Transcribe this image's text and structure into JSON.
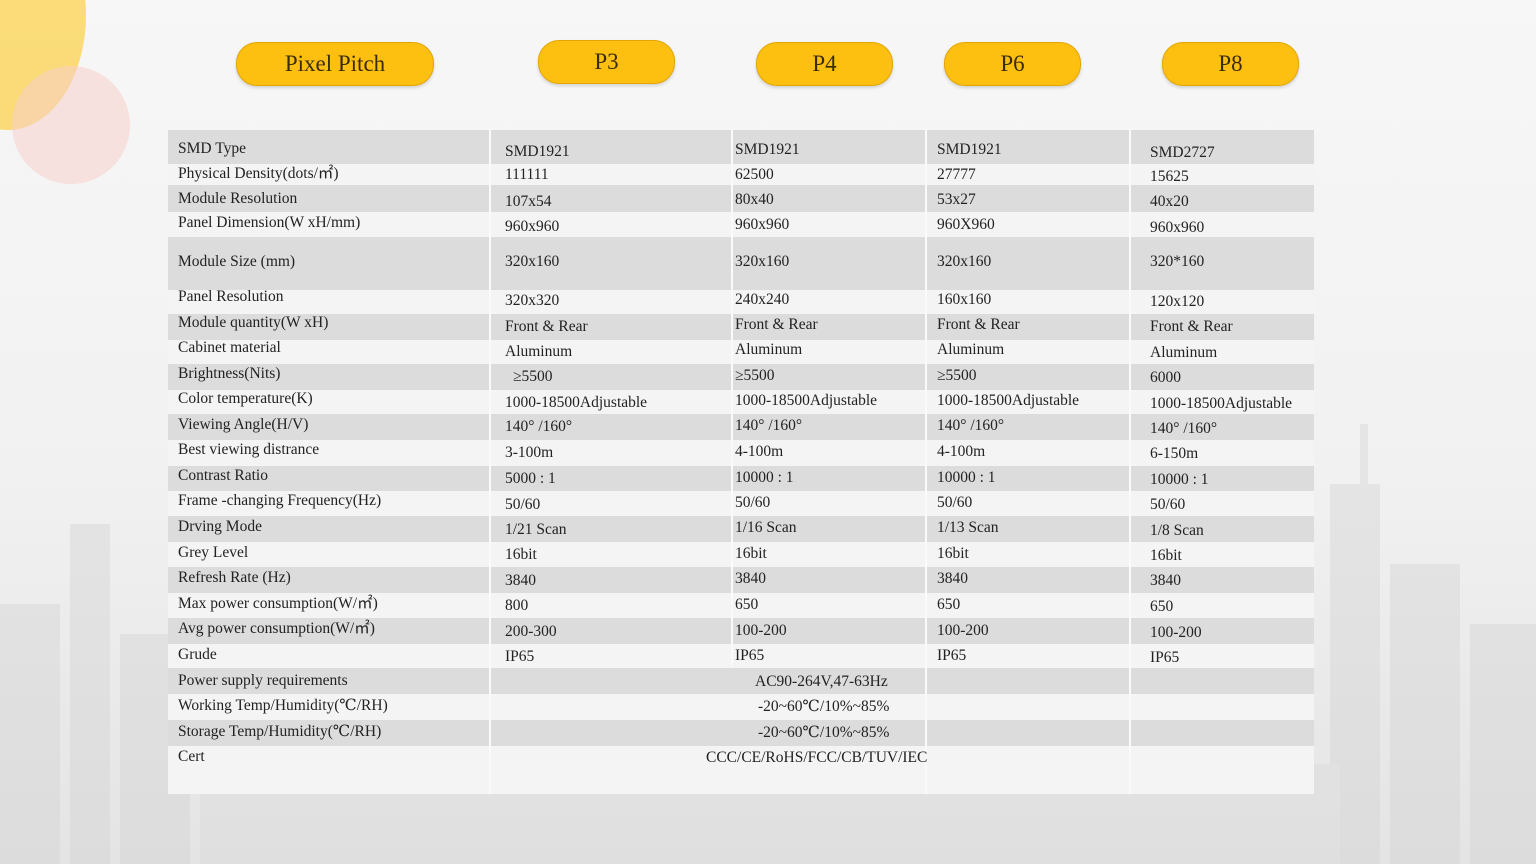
{
  "header": {
    "pixel_pitch_label": "Pixel Pitch",
    "models": [
      "P3",
      "P4",
      "P6",
      "P8"
    ]
  },
  "table": {
    "rows": [
      {
        "label": "SMD Type",
        "values": [
          "SMD1921",
          "SMD1921",
          "SMD1921",
          "SMD2727"
        ]
      },
      {
        "label": "Physical Density(dots/㎡)",
        "values": [
          "111111",
          "62500",
          "27777",
          "15625"
        ]
      },
      {
        "label": "Module Resolution",
        "values": [
          "107x54",
          "80x40",
          "53x27",
          "40x20"
        ]
      },
      {
        "label": "Panel Dimension(W xH/mm)",
        "values": [
          "960x960",
          "960x960",
          "960X960",
          "960x960"
        ]
      },
      {
        "label": "Module Size (mm)",
        "values": [
          "320x160",
          "320x160",
          "320x160",
          "320*160"
        ]
      },
      {
        "label": "Panel Resolution",
        "values": [
          "320x320",
          "240x240",
          "160x160",
          "120x120"
        ]
      },
      {
        "label": "Module quantity(W xH)",
        "values": [
          "Front & Rear",
          "Front & Rear",
          "Front & Rear",
          "Front & Rear"
        ]
      },
      {
        "label": "Cabinet material",
        "values": [
          "Aluminum",
          "Aluminum",
          "Aluminum",
          "Aluminum"
        ]
      },
      {
        "label": "Brightness(Nits)",
        "values": [
          "≥5500",
          "≥5500",
          "≥5500",
          "6000"
        ]
      },
      {
        "label": "Color temperature(K)",
        "values": [
          "1000-18500Adjustable",
          "1000-18500Adjustable",
          "1000-18500Adjustable",
          "1000-18500Adjustable"
        ]
      },
      {
        "label": "Viewing Angle(H/V)",
        "values": [
          "140° /160°",
          "140° /160°",
          "140° /160°",
          "140° /160°"
        ]
      },
      {
        "label": "Best viewing distrance",
        "values": [
          "3-100m",
          "4-100m",
          "4-100m",
          "6-150m"
        ]
      },
      {
        "label": "Contrast Ratio",
        "values": [
          "5000 : 1",
          "10000 : 1",
          "10000 : 1",
          "10000 : 1"
        ]
      },
      {
        "label": "Frame -changing  Frequency(Hz)",
        "values": [
          "50/60",
          "50/60",
          "50/60",
          "50/60"
        ]
      },
      {
        "label": "Drving Mode",
        "values": [
          "1/21 Scan",
          "1/16 Scan",
          "1/13 Scan",
          "1/8 Scan"
        ]
      },
      {
        "label": "Grey Level",
        "values": [
          "16bit",
          "16bit",
          "16bit",
          "16bit"
        ]
      },
      {
        "label": "Refresh Rate (Hz)",
        "values": [
          "3840",
          "3840",
          "3840",
          "3840"
        ]
      },
      {
        "label": "Max power consumption(W/㎡)",
        "values": [
          "800",
          "650",
          "650",
          "650"
        ]
      },
      {
        "label": "Avg power consumption(W/㎡)",
        "values": [
          "200-300",
          "100-200",
          "100-200",
          "100-200"
        ]
      },
      {
        "label": "Grude",
        "values": [
          "IP65",
          "IP65",
          "IP65",
          "IP65"
        ]
      }
    ],
    "merged_rows": [
      {
        "label": "Power supply requirements",
        "value": "AC90-264V,47-63Hz"
      },
      {
        "label": "Working Temp/Humidity(℃/RH)",
        "value": "-20~60℃/10%~85%"
      },
      {
        "label": "Storage Temp/Humidity(℃/RH)",
        "value": "-20~60℃/10%~85%"
      },
      {
        "label": "Cert",
        "value": "CCC/CE/RoHS/FCC/CB/TUV/IEC"
      }
    ]
  }
}
